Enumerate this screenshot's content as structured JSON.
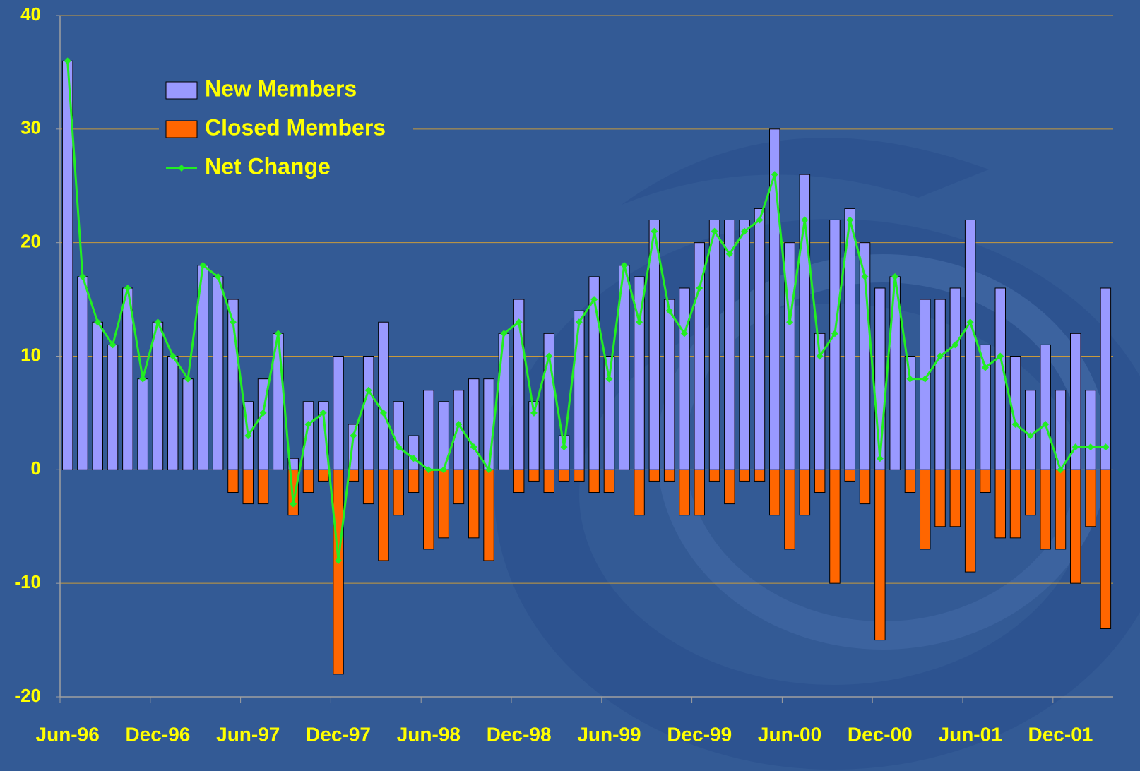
{
  "chart_data": {
    "type": "bar-line",
    "categories": [
      "Jun-96",
      null,
      null,
      null,
      null,
      null,
      "Dec-96",
      null,
      null,
      null,
      null,
      null,
      "Jun-97",
      null,
      null,
      null,
      null,
      null,
      "Dec-97",
      null,
      null,
      null,
      null,
      null,
      "Jun-98",
      null,
      null,
      null,
      null,
      null,
      "Dec-98",
      null,
      null,
      null,
      null,
      null,
      "Jun-99",
      null,
      null,
      null,
      null,
      null,
      "Dec-99",
      null,
      null,
      null,
      null,
      null,
      "Jun-00",
      null,
      null,
      null,
      null,
      null,
      "Dec-00",
      null,
      null,
      null,
      null,
      null,
      "Jun-01",
      null,
      null,
      null,
      null,
      null,
      "Dec-01",
      null,
      null,
      null
    ],
    "series": [
      {
        "name": "New Members",
        "type": "bar",
        "color": "#9999ff",
        "values": [
          36,
          17,
          13,
          11,
          16,
          8,
          13,
          10,
          8,
          18,
          17,
          15,
          6,
          8,
          12,
          1,
          6,
          6,
          10,
          4,
          10,
          13,
          6,
          3,
          7,
          6,
          7,
          8,
          8,
          12,
          15,
          6,
          12,
          3,
          14,
          17,
          10,
          18,
          17,
          22,
          15,
          16,
          20,
          22,
          22,
          22,
          23,
          30,
          20,
          26,
          12,
          22,
          23,
          20,
          16,
          17,
          10,
          15,
          15,
          16,
          22,
          11,
          16,
          10,
          7,
          11,
          7,
          12,
          7,
          16
        ]
      },
      {
        "name": "Closed Members",
        "type": "bar",
        "color": "#ff6600",
        "values": [
          0,
          0,
          0,
          0,
          0,
          0,
          0,
          0,
          0,
          0,
          0,
          -2,
          -3,
          -3,
          0,
          -4,
          -2,
          -1,
          -18,
          -1,
          -3,
          -8,
          -4,
          -2,
          -7,
          -6,
          -3,
          -6,
          -8,
          0,
          -2,
          -1,
          -2,
          -1,
          -1,
          -2,
          -2,
          0,
          -4,
          -1,
          -1,
          -4,
          -4,
          -1,
          -3,
          -1,
          -1,
          -4,
          -7,
          -4,
          -2,
          -10,
          -1,
          -3,
          -15,
          0,
          -2,
          -7,
          -5,
          -5,
          -9,
          -2,
          -6,
          -6,
          -4,
          -7,
          -7,
          -10,
          -5,
          -14
        ]
      },
      {
        "name": "Net Change",
        "type": "line",
        "color": "#22ee22",
        "values": [
          36,
          17,
          13,
          11,
          16,
          8,
          13,
          10,
          8,
          18,
          17,
          13,
          3,
          5,
          12,
          -3,
          4,
          5,
          -8,
          3,
          7,
          5,
          2,
          1,
          0,
          0,
          4,
          2,
          0,
          12,
          13,
          5,
          10,
          2,
          13,
          15,
          8,
          18,
          13,
          21,
          14,
          12,
          16,
          21,
          19,
          21,
          22,
          26,
          13,
          22,
          10,
          12,
          22,
          17,
          1,
          17,
          8,
          8,
          10,
          11,
          13,
          9,
          10,
          4,
          3,
          4,
          0,
          2,
          2,
          2
        ]
      }
    ],
    "ylim": [
      -20,
      40
    ],
    "yticks": [
      -20,
      -10,
      0,
      10,
      20,
      30,
      40
    ],
    "grid": true,
    "legend": "upper left"
  }
}
